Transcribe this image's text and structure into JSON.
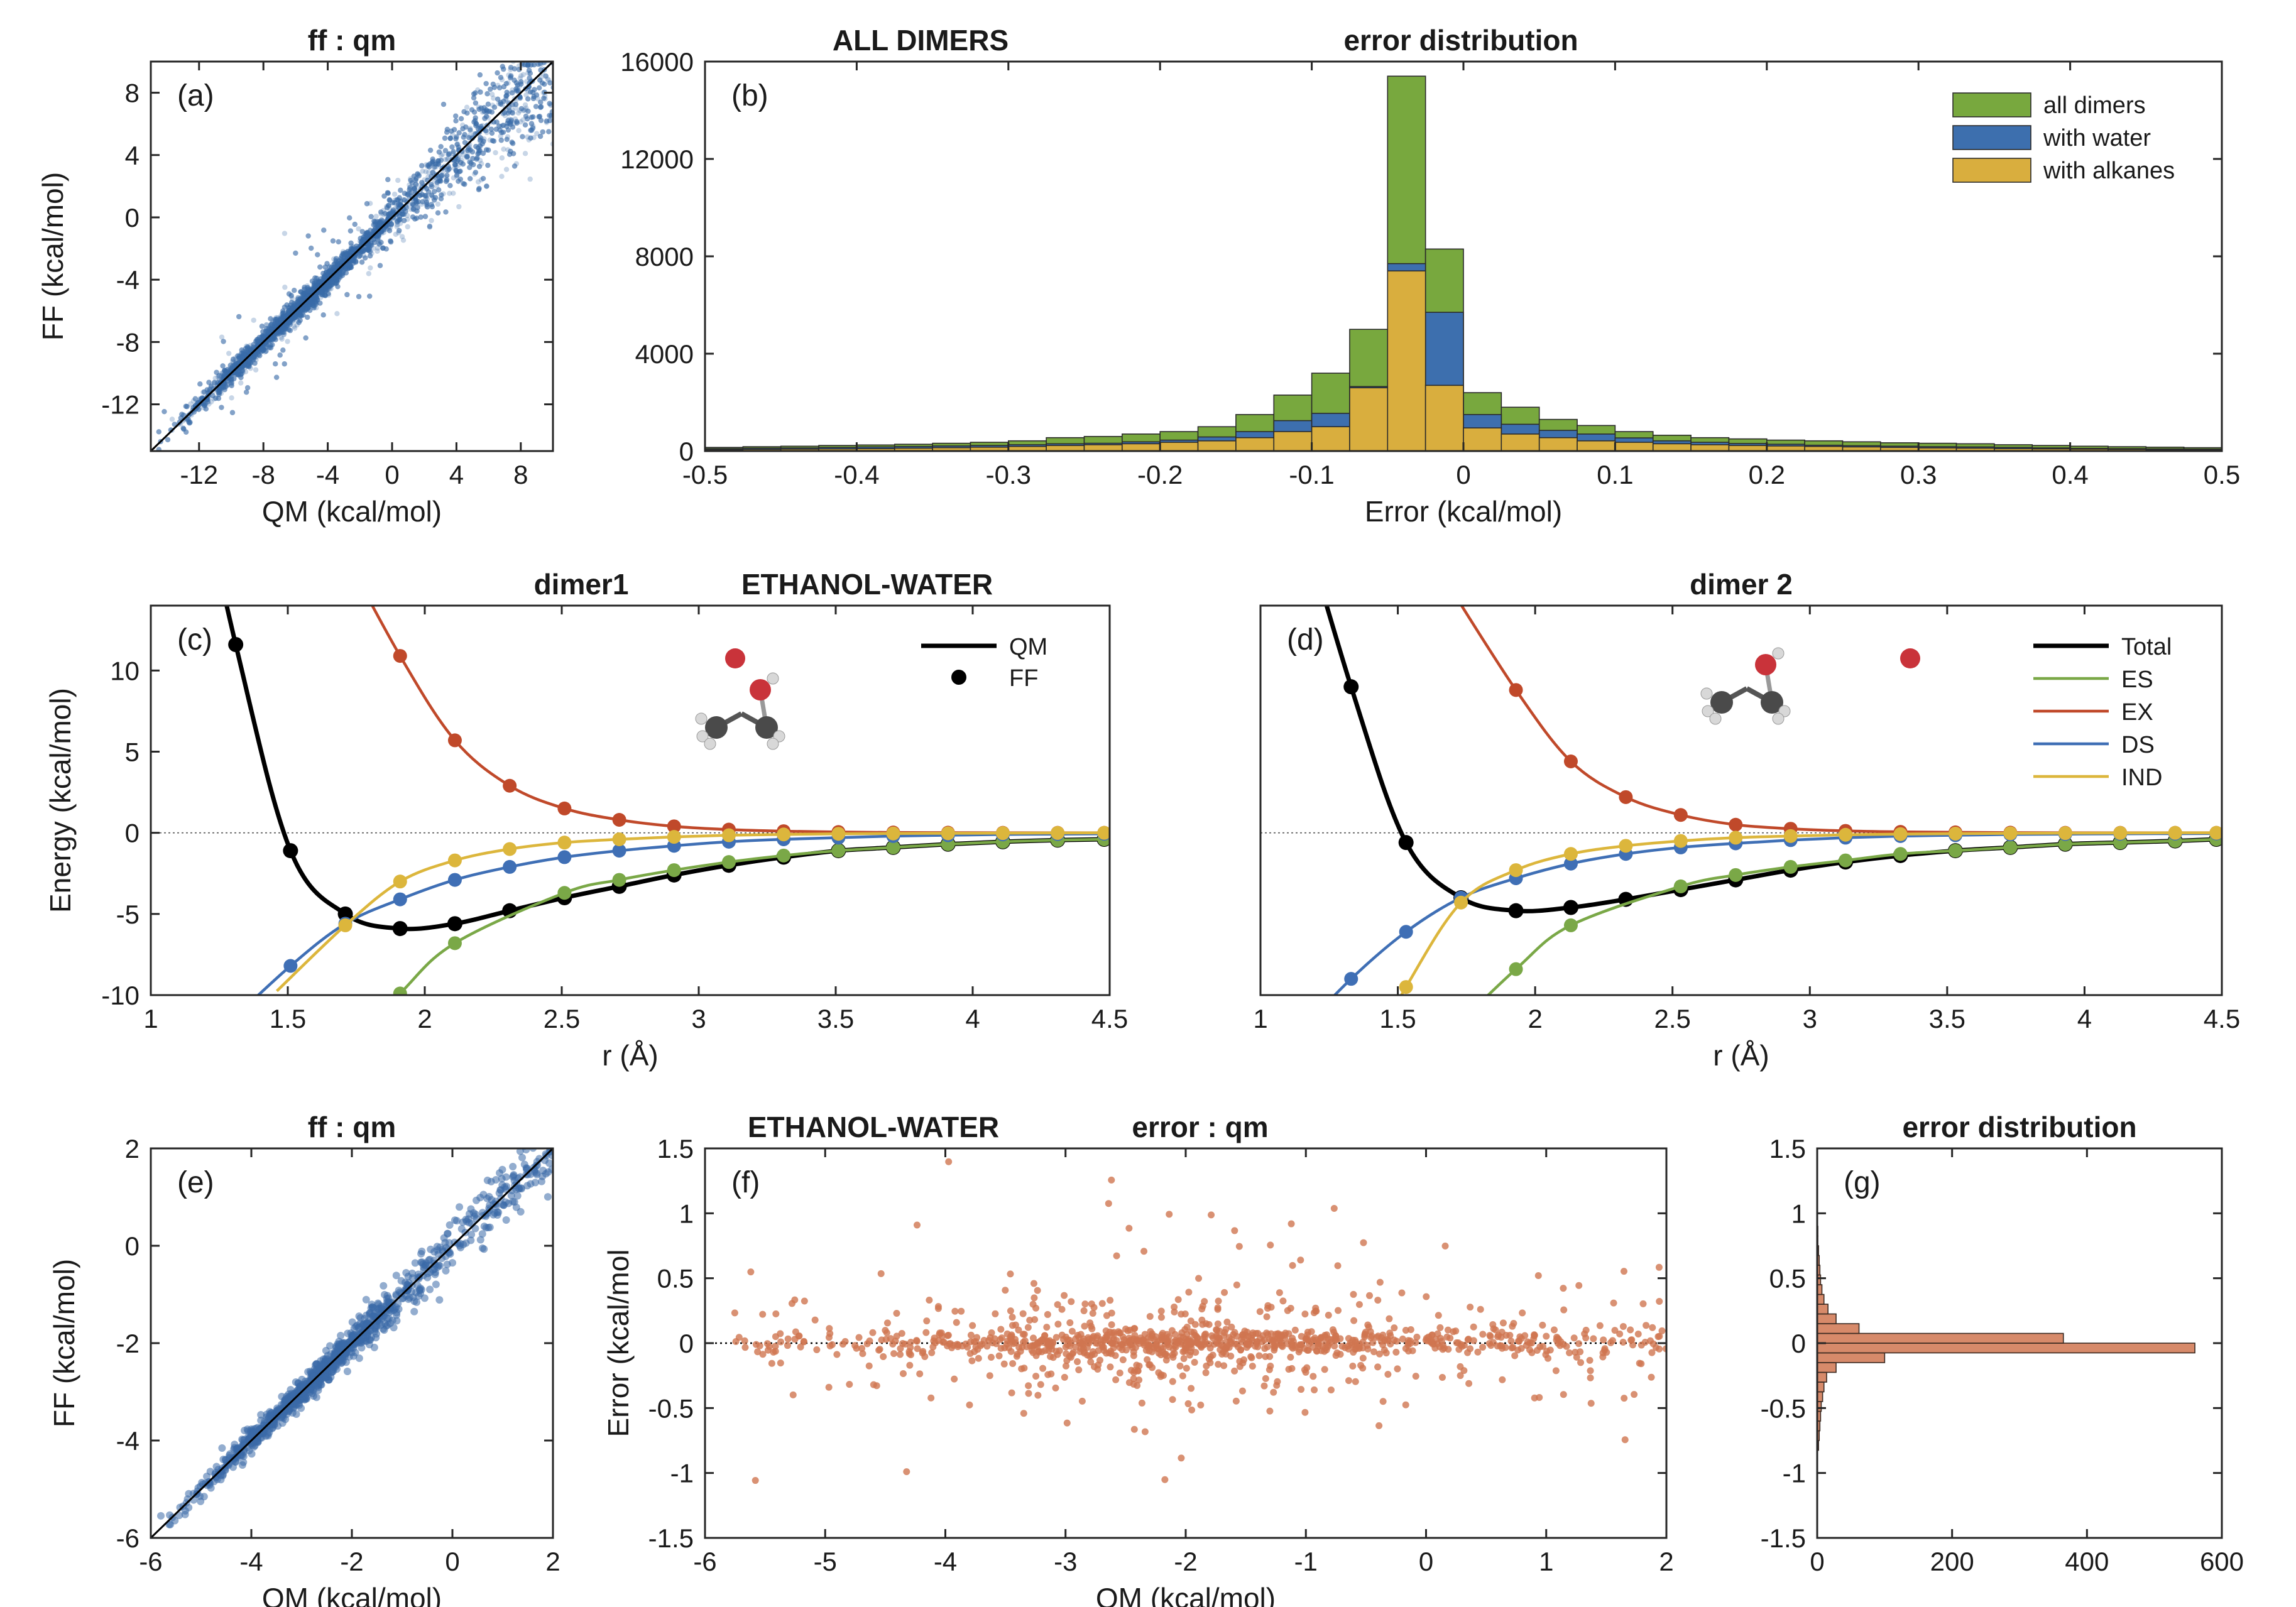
{
  "colors": {
    "scatter_blue": "#3b6aa8",
    "total_black": "#000000",
    "es_green": "#7aa847",
    "ex_red": "#c0492a",
    "ds_blue": "#3f6fb5",
    "ind_yellow": "#dcb63c",
    "hist_green": "#78a83e",
    "hist_blue": "#3d6fae",
    "hist_yellow": "#d9ae3e",
    "err_orange": "#d07650"
  },
  "chart_data": [
    {
      "id": "a",
      "type": "scatter",
      "panel_label": "(a)",
      "title": "ff : qm",
      "xlabel": "QM (kcal/mol)",
      "ylabel": "FF (kcal/mol)",
      "xlim": [
        -15,
        10
      ],
      "ylim": [
        -15,
        10
      ],
      "xticks": [
        -12,
        -8,
        -4,
        0,
        4,
        8
      ],
      "yticks": [
        -12,
        -8,
        -4,
        0,
        4,
        8
      ],
      "identity_line": true,
      "n_points": 6000,
      "point_spread_description": "dense cloud along y=x, wider above 0"
    },
    {
      "id": "b",
      "type": "bar",
      "panel_label": "(b)",
      "titles": [
        "ALL DIMERS",
        "error distribution"
      ],
      "xlabel": "Error (kcal/mol)",
      "ylabel": "",
      "xlim": [
        -0.5,
        0.5
      ],
      "ylim": [
        0,
        16000
      ],
      "xticks": [
        -0.5,
        -0.4,
        -0.3,
        -0.2,
        -0.1,
        0,
        0.1,
        0.2,
        0.3,
        0.4,
        0.5
      ],
      "xtick_labels": [
        "-0.5",
        "-0.4",
        "-0.3",
        "-0.2",
        "-0.1",
        "0",
        "0.1",
        "0.2",
        "0.3",
        "0.4",
        "0.5"
      ],
      "yticks": [
        0,
        4000,
        8000,
        12000,
        16000
      ],
      "bin_edges_start": -0.5,
      "bin_width": 0.025,
      "legend_position": "top-right",
      "series": [
        {
          "name": "all dimers",
          "values": [
            150,
            180,
            200,
            230,
            250,
            280,
            320,
            360,
            420,
            550,
            600,
            700,
            800,
            1000,
            1500,
            2300,
            3200,
            5000,
            15400,
            8300,
            2400,
            1800,
            1300,
            1050,
            800,
            650,
            550,
            500,
            450,
            420,
            380,
            340,
            320,
            300,
            260,
            230,
            200,
            180,
            160,
            140
          ]
        },
        {
          "name": "with water",
          "values": [
            100,
            120,
            130,
            150,
            170,
            190,
            210,
            230,
            260,
            300,
            320,
            380,
            450,
            580,
            800,
            1250,
            1550,
            2650,
            7700,
            5700,
            1500,
            1100,
            850,
            700,
            540,
            420,
            360,
            310,
            280,
            240,
            220,
            200,
            180,
            170,
            150,
            130,
            110,
            100,
            90,
            80
          ]
        },
        {
          "name": "with alkanes",
          "values": [
            60,
            70,
            80,
            90,
            100,
            120,
            140,
            160,
            190,
            230,
            260,
            300,
            360,
            420,
            550,
            800,
            1000,
            2600,
            7400,
            2700,
            950,
            700,
            550,
            420,
            360,
            300,
            260,
            230,
            210,
            190,
            170,
            150,
            130,
            120,
            100,
            90,
            80,
            70,
            60,
            50
          ]
        }
      ]
    },
    {
      "id": "c",
      "type": "line",
      "panel_label": "(c)",
      "titles": [
        "dimer1",
        "ETHANOL-WATER"
      ],
      "xlabel": "r (Å)",
      "ylabel": "Energy (kcal/mol)",
      "xlim": [
        1,
        4.5
      ],
      "ylim": [
        -10,
        14
      ],
      "xticks": [
        1,
        1.5,
        2,
        2.5,
        3,
        3.5,
        4,
        4.5
      ],
      "xtick_labels": [
        "1",
        "1.5",
        "2",
        "2.5",
        "3",
        "3.5",
        "4",
        "4.5"
      ],
      "yticks": [
        -10,
        -5,
        0,
        5,
        10
      ],
      "legend": [
        "QM",
        "FF"
      ],
      "legend_position": "top-right",
      "series": [
        {
          "name": "Total",
          "x": [
            1.31,
            1.51,
            1.71,
            1.91,
            2.11,
            2.31,
            2.51,
            2.71,
            2.91,
            3.11,
            3.31,
            3.51,
            3.71,
            3.91,
            4.11,
            4.31,
            4.48
          ],
          "y": [
            11.6,
            -1.1,
            -5.0,
            -5.9,
            -5.6,
            -4.8,
            -4.0,
            -3.3,
            -2.6,
            -2.0,
            -1.5,
            -1.1,
            -0.9,
            -0.7,
            -0.55,
            -0.45,
            -0.4
          ]
        },
        {
          "name": "ES",
          "x": [
            1.91,
            2.11,
            2.51,
            2.71,
            2.91,
            3.11,
            3.31,
            3.51,
            3.71,
            3.91,
            4.11,
            4.31,
            4.48
          ],
          "y": [
            -9.9,
            -6.8,
            -3.7,
            -2.9,
            -2.3,
            -1.8,
            -1.4,
            -1.1,
            -0.9,
            -0.7,
            -0.55,
            -0.45,
            -0.4
          ]
        },
        {
          "name": "EX",
          "x": [
            1.91,
            2.11,
            2.31,
            2.51,
            2.71,
            2.91,
            3.11,
            3.31,
            3.51,
            3.71,
            3.91,
            4.11,
            4.31,
            4.48
          ],
          "y": [
            10.9,
            5.7,
            2.9,
            1.5,
            0.8,
            0.4,
            0.2,
            0.1,
            0.05,
            0.02,
            0.01,
            0.0,
            0.0,
            0.0
          ]
        },
        {
          "name": "DS",
          "x": [
            1.51,
            1.71,
            1.91,
            2.11,
            2.31,
            2.51,
            2.71,
            2.91,
            3.11,
            3.31,
            3.51,
            3.71,
            3.91,
            4.11,
            4.31,
            4.48
          ],
          "y": [
            -8.2,
            -5.6,
            -4.1,
            -2.9,
            -2.1,
            -1.5,
            -1.1,
            -0.8,
            -0.55,
            -0.4,
            -0.3,
            -0.2,
            -0.15,
            -0.1,
            -0.08,
            -0.06
          ]
        },
        {
          "name": "IND",
          "x": [
            1.71,
            1.91,
            2.11,
            2.31,
            2.51,
            2.71,
            2.91,
            3.11,
            3.31,
            3.51,
            3.71,
            3.91,
            4.11,
            4.31,
            4.48
          ],
          "y": [
            -5.7,
            -3.0,
            -1.7,
            -1.0,
            -0.6,
            -0.4,
            -0.25,
            -0.15,
            -0.1,
            -0.06,
            -0.04,
            -0.03,
            -0.02,
            -0.01,
            0.0
          ]
        }
      ]
    },
    {
      "id": "d",
      "type": "line",
      "panel_label": "(d)",
      "title": "dimer 2",
      "xlabel": "r (Å)",
      "ylabel": "",
      "xlim": [
        1,
        4.5
      ],
      "ylim": [
        -10,
        14
      ],
      "xticks": [
        1,
        1.5,
        2,
        2.5,
        3,
        3.5,
        4,
        4.5
      ],
      "xtick_labels": [
        "1",
        "1.5",
        "2",
        "2.5",
        "3",
        "3.5",
        "4",
        "4.5"
      ],
      "legend": [
        "Total",
        "ES",
        "EX",
        "DS",
        "IND"
      ],
      "legend_position": "top-right",
      "series": [
        {
          "name": "Total",
          "x": [
            1.33,
            1.53,
            1.73,
            1.93,
            2.13,
            2.33,
            2.53,
            2.73,
            2.93,
            3.13,
            3.33,
            3.53,
            3.73,
            3.93,
            4.13,
            4.33,
            4.48
          ],
          "y": [
            9.0,
            -0.6,
            -4.0,
            -4.8,
            -4.6,
            -4.1,
            -3.5,
            -2.9,
            -2.3,
            -1.8,
            -1.4,
            -1.1,
            -0.9,
            -0.7,
            -0.6,
            -0.5,
            -0.4
          ]
        },
        {
          "name": "ES",
          "x": [
            1.93,
            2.13,
            2.53,
            2.73,
            2.93,
            3.13,
            3.33,
            3.53,
            3.73,
            3.93,
            4.13,
            4.33,
            4.48
          ],
          "y": [
            -8.4,
            -5.7,
            -3.3,
            -2.6,
            -2.1,
            -1.7,
            -1.3,
            -1.1,
            -0.9,
            -0.7,
            -0.6,
            -0.5,
            -0.4
          ]
        },
        {
          "name": "EX",
          "x": [
            1.93,
            2.13,
            2.33,
            2.53,
            2.73,
            2.93,
            3.13,
            3.33,
            3.53,
            3.73,
            3.93,
            4.13,
            4.33,
            4.48
          ],
          "y": [
            8.8,
            4.4,
            2.2,
            1.1,
            0.5,
            0.25,
            0.12,
            0.06,
            0.03,
            0.01,
            0.0,
            0.0,
            0.0,
            0.0
          ]
        },
        {
          "name": "DS",
          "x": [
            1.33,
            1.53,
            1.73,
            1.93,
            2.13,
            2.33,
            2.53,
            2.73,
            2.93,
            3.13,
            3.33,
            3.53,
            3.73,
            3.93,
            4.13,
            4.33,
            4.48
          ],
          "y": [
            -9.0,
            -6.1,
            -4.0,
            -2.8,
            -1.9,
            -1.3,
            -0.9,
            -0.65,
            -0.45,
            -0.3,
            -0.2,
            -0.15,
            -0.1,
            -0.08,
            -0.06,
            -0.05,
            -0.04
          ]
        },
        {
          "name": "IND",
          "x": [
            1.53,
            1.73,
            1.93,
            2.13,
            2.33,
            2.53,
            2.73,
            2.93,
            3.13,
            3.33,
            3.53,
            3.73,
            3.93,
            4.13,
            4.33,
            4.48
          ],
          "y": [
            -9.5,
            -4.3,
            -2.3,
            -1.3,
            -0.8,
            -0.5,
            -0.3,
            -0.2,
            -0.12,
            -0.08,
            -0.05,
            -0.03,
            -0.02,
            -0.01,
            0.0,
            0.0
          ]
        }
      ]
    },
    {
      "id": "e",
      "type": "scatter",
      "panel_label": "(e)",
      "title": "ff : qm",
      "xlabel": "QM (kcal/mol)",
      "ylabel": "FF (kcal/mol)",
      "xlim": [
        -6,
        2
      ],
      "ylim": [
        -6,
        2
      ],
      "xticks": [
        -6,
        -4,
        -2,
        0,
        2
      ],
      "yticks": [
        -6,
        -4,
        -2,
        0,
        2
      ],
      "identity_line": true,
      "n_points": 1100
    },
    {
      "id": "f",
      "type": "scatter",
      "panel_label": "(f)",
      "titles": [
        "ETHANOL-WATER",
        "error : qm"
      ],
      "xlabel": "QM (kcal/mol)",
      "ylabel": "Error (kcal/mol",
      "xlim": [
        -6,
        2
      ],
      "ylim": [
        -1.5,
        1.5
      ],
      "xticks": [
        -6,
        -5,
        -4,
        -3,
        -2,
        -1,
        0,
        1,
        2
      ],
      "yticks": [
        -1.5,
        -1,
        -0.5,
        0,
        0.5,
        1,
        1.5
      ],
      "ytick_labels": [
        "-1.5",
        "-1",
        "-0.5",
        "0",
        "0.5",
        "1",
        "1.5"
      ],
      "zero_line": "dotted",
      "n_points": 1100
    },
    {
      "id": "g",
      "type": "bar",
      "orientation": "horizontal",
      "panel_label": "(g)",
      "title": "error distribution",
      "xlim": [
        0,
        600
      ],
      "ylim": [
        -1.5,
        1.5
      ],
      "xticks": [
        0,
        200,
        400,
        600
      ],
      "yticks": [
        -1.5,
        -1,
        -0.5,
        0,
        0.5,
        1,
        1.5
      ],
      "ytick_labels": [
        "-1.5",
        "-1",
        "-0.5",
        "0",
        "0.5",
        "1",
        "1.5"
      ],
      "bin_edges_start": -0.825,
      "bin_width": 0.075,
      "values": [
        2,
        3,
        4,
        5,
        6,
        8,
        10,
        14,
        28,
        100,
        560,
        365,
        62,
        28,
        16,
        10,
        7,
        5,
        4,
        3,
        2,
        1,
        1
      ]
    }
  ]
}
